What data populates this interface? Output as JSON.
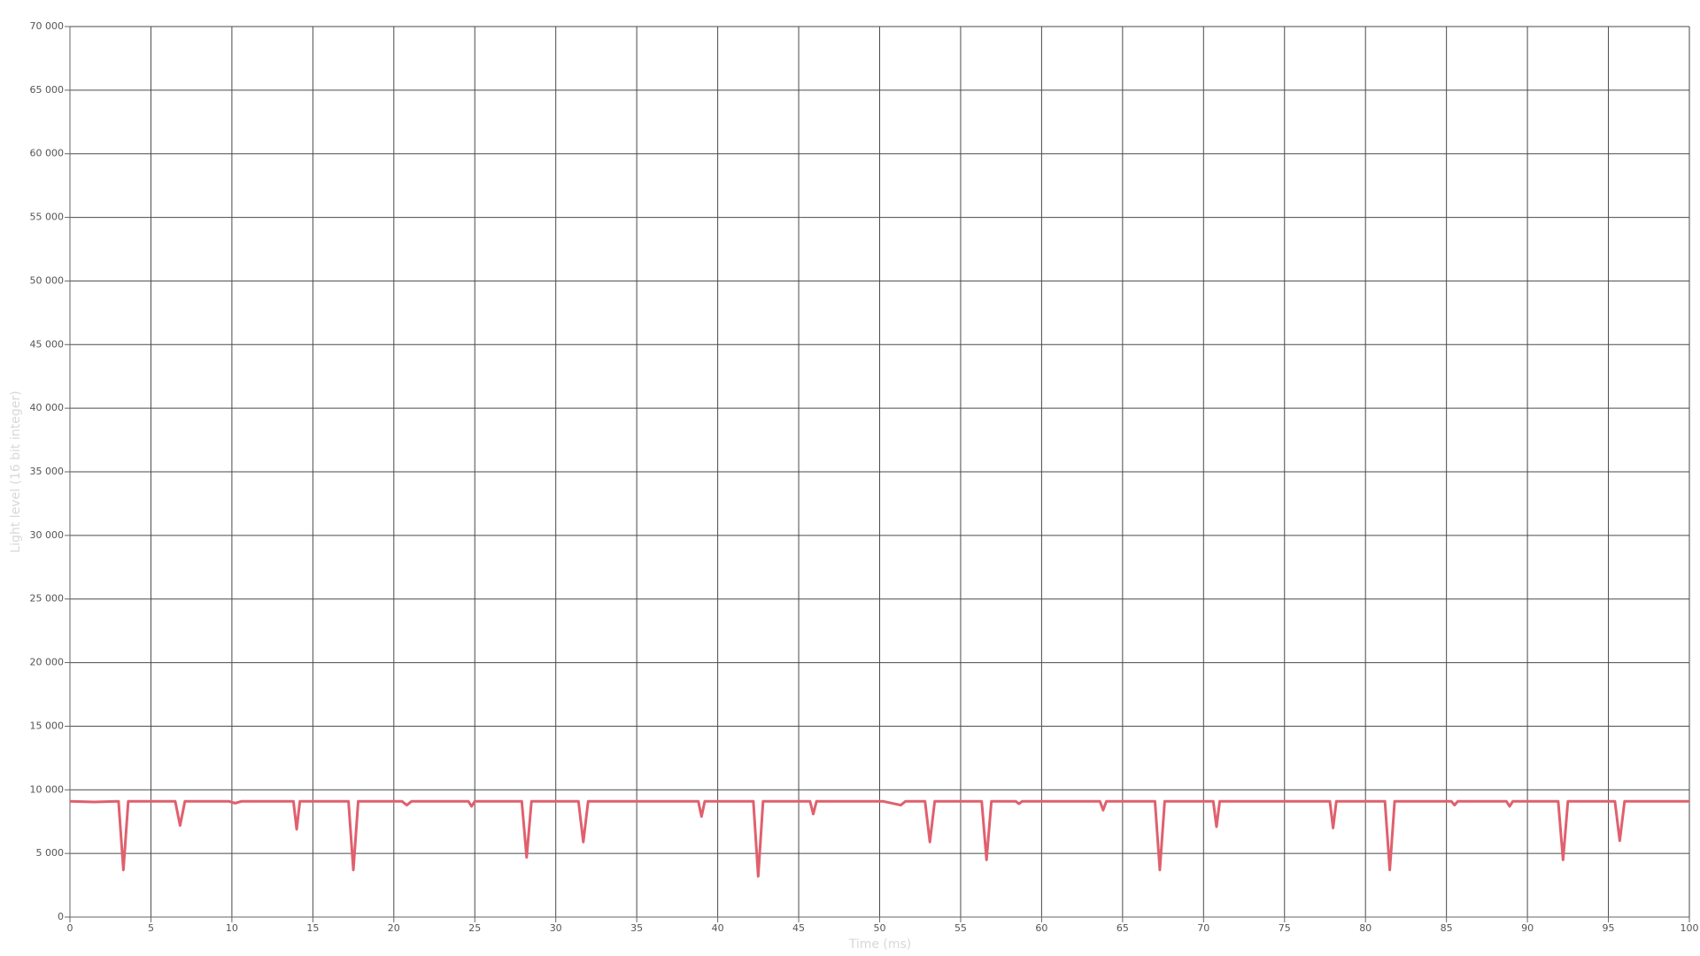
{
  "chart_data": {
    "type": "line",
    "x_label": "Time (ms)",
    "y_label": "Light level (16 bit integer)",
    "xlim": [
      0,
      100
    ],
    "ylim": [
      0,
      70000
    ],
    "xticks": [
      0,
      5,
      10,
      15,
      20,
      25,
      30,
      35,
      40,
      45,
      50,
      55,
      60,
      65,
      70,
      75,
      80,
      85,
      90,
      95,
      100
    ],
    "yticks": [
      0,
      {
        "value": 5000,
        "label": "5 000"
      },
      {
        "value": 10000,
        "label": "10 000"
      },
      {
        "value": 15000,
        "label": "15 000"
      },
      {
        "value": 20000,
        "label": "20 000"
      },
      {
        "value": 25000,
        "label": "25 000"
      },
      {
        "value": 30000,
        "label": "30 000"
      },
      {
        "value": 35000,
        "label": "35 000"
      },
      {
        "value": 40000,
        "label": "40 000"
      },
      {
        "value": 45000,
        "label": "45 000"
      },
      {
        "value": 50000,
        "label": "50 000"
      },
      {
        "value": 55000,
        "label": "55 000"
      },
      {
        "value": 60000,
        "label": "60 000"
      },
      {
        "value": 65000,
        "label": "65 000"
      },
      {
        "value": 70000,
        "label": "70 000"
      }
    ],
    "grid": true,
    "x": [
      0,
      1.5,
      3.0,
      3.3,
      3.6,
      6.5,
      6.8,
      7.1,
      9.8,
      10.2,
      10.6,
      13.8,
      14.0,
      14.2,
      17.2,
      17.5,
      17.8,
      20.5,
      20.8,
      21.1,
      24.6,
      24.8,
      25.0,
      27.9,
      28.2,
      28.5,
      31.4,
      31.7,
      32.0,
      38.8,
      39.0,
      39.2,
      42.2,
      42.5,
      42.8,
      45.7,
      45.9,
      46.1,
      50.2,
      51.3,
      51.6,
      52.8,
      53.1,
      53.4,
      56.3,
      56.6,
      56.9,
      58.4,
      58.6,
      58.8,
      63.6,
      63.8,
      64.0,
      67.0,
      67.3,
      67.6,
      70.6,
      70.8,
      71.0,
      77.8,
      78.0,
      78.2,
      81.2,
      81.5,
      81.8,
      85.3,
      85.5,
      85.7,
      88.7,
      88.9,
      89.1,
      91.9,
      92.2,
      92.5,
      95.4,
      95.7,
      96.0,
      100
    ],
    "series": [
      {
        "name": "Light level",
        "color": "#e0606e",
        "values": [
          9100,
          9050,
          9100,
          3700,
          9100,
          9100,
          7200,
          9100,
          9100,
          8950,
          9100,
          9100,
          6900,
          9100,
          9100,
          3700,
          9100,
          9100,
          8800,
          9100,
          9100,
          8700,
          9100,
          9100,
          4700,
          9100,
          9100,
          5900,
          9100,
          9100,
          7900,
          9100,
          9100,
          3200,
          9100,
          9100,
          8100,
          9100,
          9100,
          8800,
          9100,
          9100,
          5900,
          9100,
          9100,
          4500,
          9100,
          9100,
          8900,
          9100,
          9100,
          8400,
          9100,
          9100,
          3700,
          9100,
          9100,
          7100,
          9100,
          9100,
          7000,
          9100,
          9100,
          3700,
          9100,
          9100,
          8800,
          9100,
          9100,
          8700,
          9100,
          9100,
          4500,
          9100,
          9100,
          6000,
          9100,
          9100
        ]
      }
    ]
  }
}
